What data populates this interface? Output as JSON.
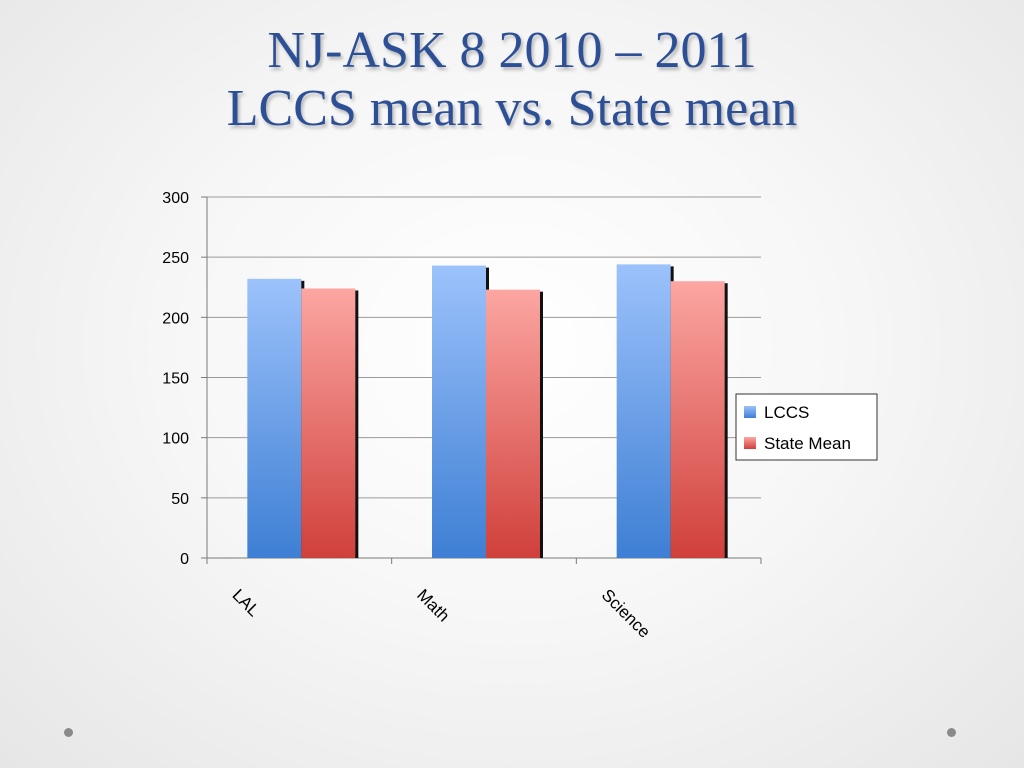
{
  "slide": {
    "title_line1": "NJ-ASK 8 2010 – 2011",
    "title_line2": "LCCS mean vs. State mean"
  },
  "chart_data": {
    "type": "bar",
    "categories": [
      "LAL",
      "Math",
      "Science"
    ],
    "series": [
      {
        "name": "LCCS",
        "values": [
          232,
          243,
          244
        ],
        "color": "#5f95e8"
      },
      {
        "name": "State Mean",
        "values": [
          224,
          223,
          230
        ],
        "color": "#e05e5a"
      }
    ],
    "ylim": [
      0,
      300
    ],
    "yticks": [
      0,
      50,
      100,
      150,
      200,
      250,
      300
    ],
    "grid": true,
    "legend": "right"
  }
}
